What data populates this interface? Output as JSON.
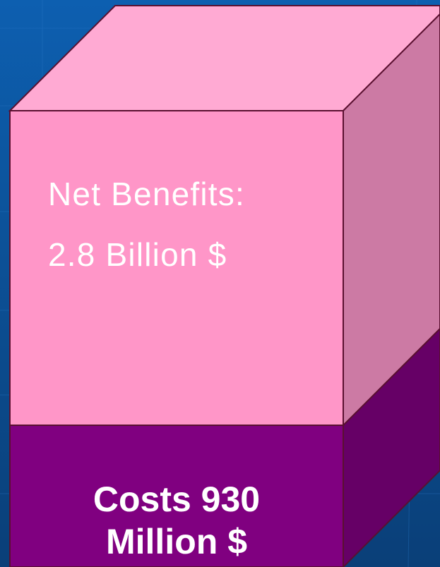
{
  "colors": {
    "background_top": "#0d5fb0",
    "background_bottom": "#0a3f78",
    "benefits_front": "#ff96c8",
    "benefits_top": "#ffaad3",
    "benefits_side": "#cc7aa4",
    "costs_front": "#800080",
    "costs_side": "#660066",
    "edge": "#5a1030",
    "text": "#ffffff"
  },
  "cube": {
    "benefits": {
      "label": "Net Benefits:",
      "value": "2.8 Billion $"
    },
    "costs": {
      "line1": "Costs 930",
      "line2": "Million $"
    }
  }
}
